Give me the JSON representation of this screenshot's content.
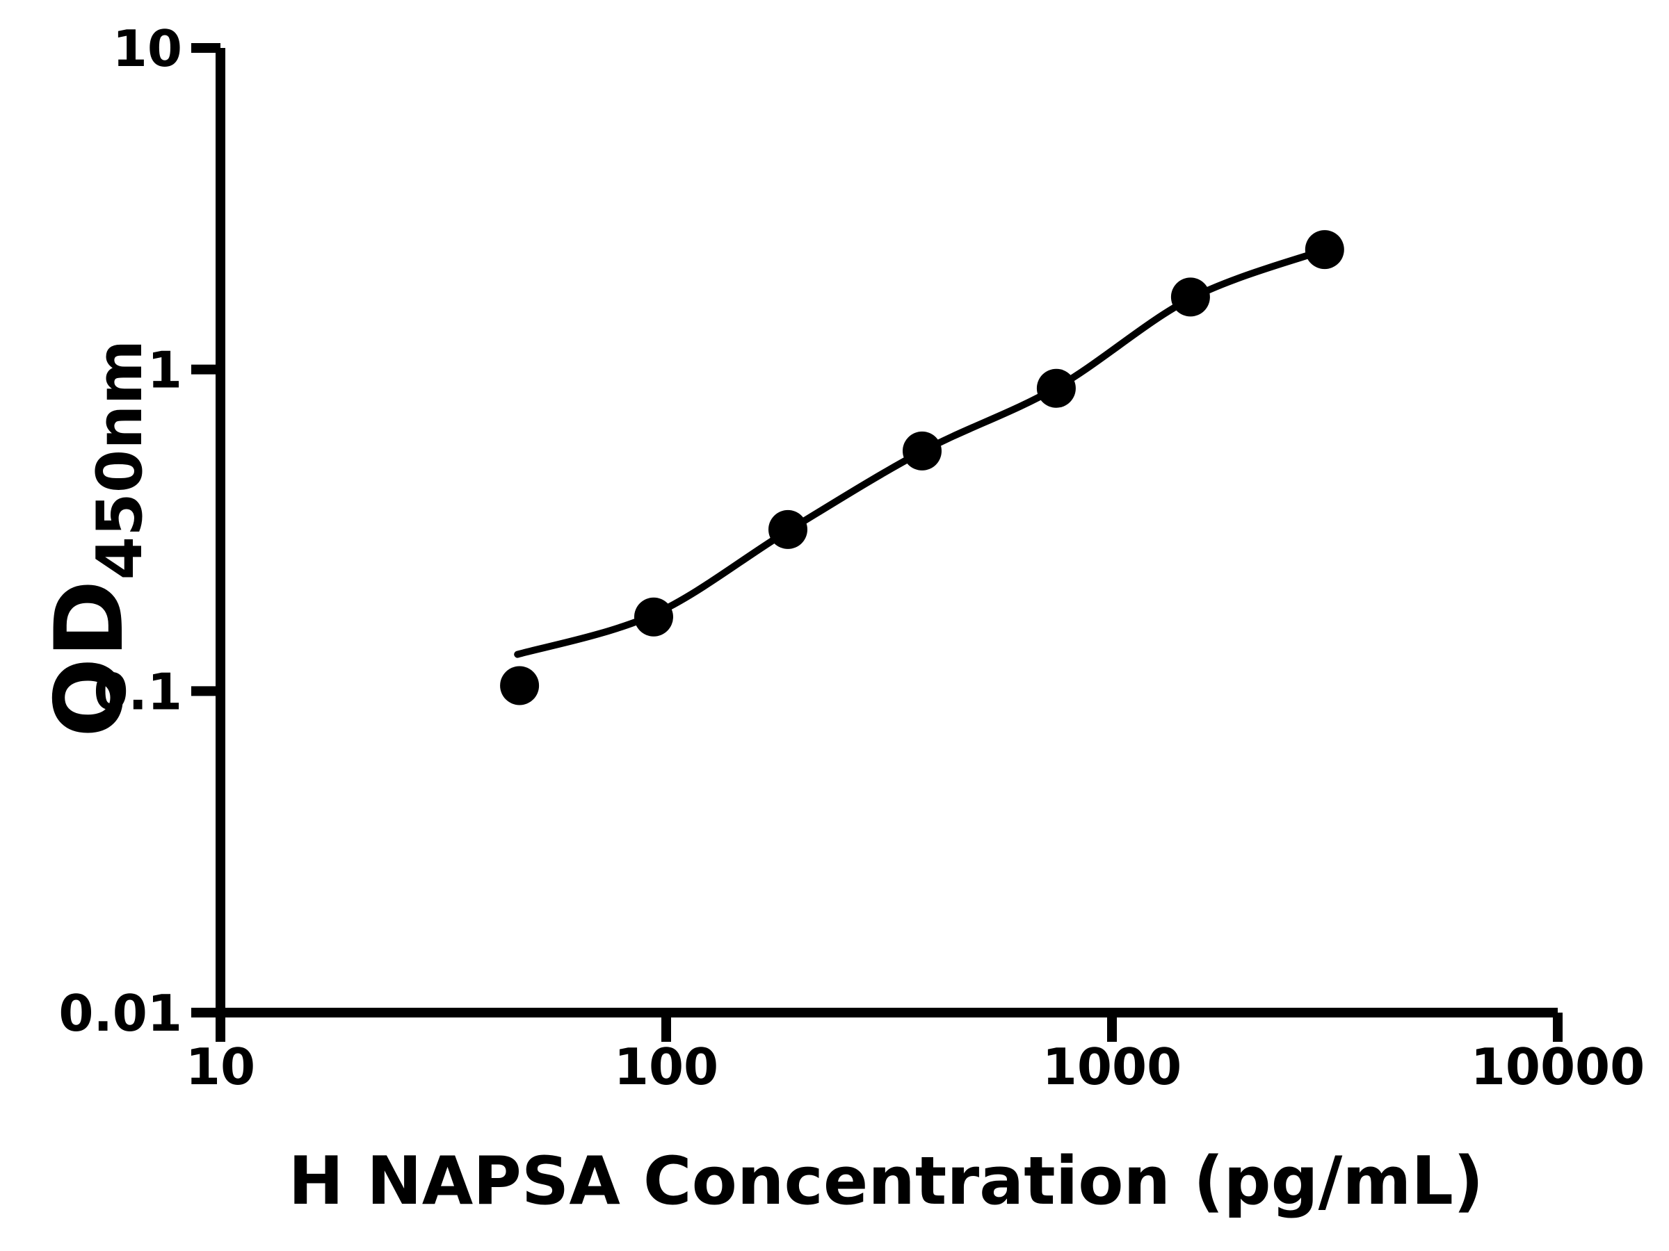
{
  "figure": {
    "background": "#ffffff",
    "ink_color": "#000000"
  },
  "chart_data": {
    "type": "scatter",
    "title": "",
    "xlabel": "H NAPSA Concentration (pg/mL)",
    "ylabel_main": "OD",
    "ylabel_sub": "450nm",
    "x_scale": "log",
    "y_scale": "log",
    "xlim": [
      10,
      10000
    ],
    "ylim": [
      0.01,
      10
    ],
    "x_tick_values": [
      10,
      100,
      1000,
      10000
    ],
    "x_tick_labels": [
      "10",
      "100",
      "1000",
      "10000"
    ],
    "y_tick_values": [
      0.01,
      0.1,
      1,
      10
    ],
    "y_tick_labels": [
      "0.01",
      "0.1",
      "1",
      "10"
    ],
    "grid": false,
    "legend": null,
    "series": [
      {
        "name": "standard-curve-points",
        "marker": "circle",
        "color": "#000000",
        "points": [
          [
            46.88,
            0.104
          ],
          [
            93.75,
            0.17
          ],
          [
            187.5,
            0.318
          ],
          [
            375,
            0.558
          ],
          [
            750,
            0.874
          ],
          [
            1500,
            1.68
          ],
          [
            3000,
            2.36
          ]
        ]
      }
    ],
    "fit_curve": {
      "name": "4pl-fit-line",
      "color": "#000000",
      "points": [
        [
          46.4,
          0.13
        ],
        [
          93.75,
          0.173
        ],
        [
          187.5,
          0.315
        ],
        [
          375,
          0.556
        ],
        [
          750,
          0.877
        ],
        [
          1500,
          1.662
        ],
        [
          3000,
          2.356
        ]
      ]
    }
  }
}
